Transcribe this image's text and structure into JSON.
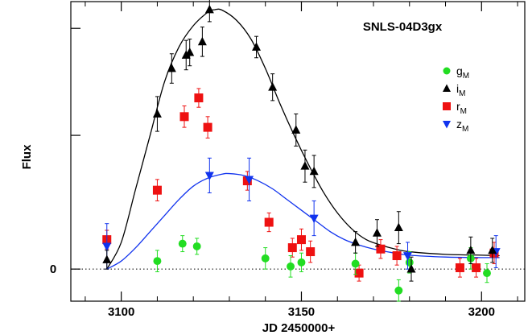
{
  "chart_data": {
    "type": "scatter",
    "title": "SNLS-04D3gx",
    "xlabel": "JD 2450000+",
    "ylabel": "Flux",
    "xlim": [
      3086,
      3212
    ],
    "ylim": [
      -0.12,
      1.0
    ],
    "xticks": [
      3100,
      3150,
      3200
    ],
    "yticks": [
      0
    ],
    "yticks_unlabeled": [
      0.5,
      0.9
    ],
    "zero_line": "dotted",
    "grid": false,
    "legend_position": "top-right",
    "series": [
      {
        "name": "g",
        "subscript": "M",
        "marker": "circle",
        "color": "#22dd22",
        "points": [
          {
            "x": 3110.0,
            "y": 0.03,
            "err": 0.04
          },
          {
            "x": 3117.0,
            "y": 0.095,
            "err": 0.03
          },
          {
            "x": 3121.0,
            "y": 0.085,
            "err": 0.03
          },
          {
            "x": 3140.0,
            "y": 0.04,
            "err": 0.04
          },
          {
            "x": 3147.0,
            "y": 0.01,
            "err": 0.04
          },
          {
            "x": 3150.0,
            "y": 0.025,
            "err": 0.035
          },
          {
            "x": 3165.0,
            "y": 0.02,
            "err": 0.04
          },
          {
            "x": 3177.0,
            "y": -0.08,
            "err": 0.04
          },
          {
            "x": 3180.0,
            "y": 0.025,
            "err": 0.04
          },
          {
            "x": 3197.0,
            "y": 0.04,
            "err": 0.04
          },
          {
            "x": 3201.5,
            "y": -0.015,
            "err": 0.035
          }
        ]
      },
      {
        "name": "i",
        "subscript": "M",
        "marker": "triangle-up",
        "color": "#000000",
        "points": [
          {
            "x": 3096.0,
            "y": 0.035,
            "err": 0.035
          },
          {
            "x": 3110.0,
            "y": 0.58,
            "err": 0.065
          },
          {
            "x": 3114.0,
            "y": 0.75,
            "err": 0.055
          },
          {
            "x": 3118.0,
            "y": 0.8,
            "err": 0.055
          },
          {
            "x": 3119.0,
            "y": 0.81,
            "err": 0.05
          },
          {
            "x": 3122.5,
            "y": 0.85,
            "err": 0.055
          },
          {
            "x": 3124.5,
            "y": 0.97,
            "err": 0.045
          },
          {
            "x": 3137.5,
            "y": 0.83,
            "err": 0.04
          },
          {
            "x": 3142.0,
            "y": 0.68,
            "err": 0.05
          },
          {
            "x": 3148.5,
            "y": 0.52,
            "err": 0.06
          },
          {
            "x": 3151.0,
            "y": 0.385,
            "err": 0.06
          },
          {
            "x": 3153.5,
            "y": 0.365,
            "err": 0.06
          },
          {
            "x": 3165.0,
            "y": 0.1,
            "err": 0.04
          },
          {
            "x": 3171.0,
            "y": 0.135,
            "err": 0.05
          },
          {
            "x": 3177.0,
            "y": 0.155,
            "err": 0.06
          },
          {
            "x": 3180.5,
            "y": 0.0,
            "err": 0.045
          },
          {
            "x": 3197.0,
            "y": 0.07,
            "err": 0.05
          },
          {
            "x": 3203.0,
            "y": 0.07,
            "err": 0.045
          }
        ]
      },
      {
        "name": "r",
        "subscript": "M",
        "marker": "square",
        "color": "#ee1111",
        "points": [
          {
            "x": 3096.0,
            "y": 0.11,
            "err": 0.035
          },
          {
            "x": 3110.0,
            "y": 0.295,
            "err": 0.04
          },
          {
            "x": 3117.5,
            "y": 0.57,
            "err": 0.04
          },
          {
            "x": 3121.5,
            "y": 0.64,
            "err": 0.035
          },
          {
            "x": 3124.0,
            "y": 0.53,
            "err": 0.04
          },
          {
            "x": 3135.0,
            "y": 0.33,
            "err": 0.035
          },
          {
            "x": 3141.0,
            "y": 0.175,
            "err": 0.035
          },
          {
            "x": 3147.5,
            "y": 0.08,
            "err": 0.035
          },
          {
            "x": 3150.0,
            "y": 0.11,
            "err": 0.04
          },
          {
            "x": 3152.5,
            "y": 0.065,
            "err": 0.04
          },
          {
            "x": 3166.0,
            "y": -0.015,
            "err": 0.03
          },
          {
            "x": 3172.0,
            "y": 0.075,
            "err": 0.035
          },
          {
            "x": 3176.5,
            "y": 0.05,
            "err": 0.035
          },
          {
            "x": 3194.0,
            "y": 0.005,
            "err": 0.035
          },
          {
            "x": 3198.5,
            "y": 0.005,
            "err": 0.035
          },
          {
            "x": 3203.5,
            "y": 0.06,
            "err": 0.04
          }
        ]
      },
      {
        "name": "z",
        "subscript": "M",
        "marker": "triangle-down",
        "color": "#1133ee",
        "points": [
          {
            "x": 3096.0,
            "y": 0.085,
            "err": 0.085
          },
          {
            "x": 3124.5,
            "y": 0.35,
            "err": 0.065
          },
          {
            "x": 3135.5,
            "y": 0.335,
            "err": 0.08
          },
          {
            "x": 3153.5,
            "y": 0.19,
            "err": 0.065
          },
          {
            "x": 3179.5,
            "y": 0.05,
            "err": 0.05
          },
          {
            "x": 3204.0,
            "y": 0.065,
            "err": 0.06
          }
        ]
      }
    ],
    "fit_curves": [
      {
        "band": "i",
        "color": "#000000",
        "points": [
          [
            3096,
            0.0
          ],
          [
            3100,
            0.1
          ],
          [
            3104,
            0.3
          ],
          [
            3108,
            0.5
          ],
          [
            3112,
            0.7
          ],
          [
            3116,
            0.83
          ],
          [
            3120,
            0.91
          ],
          [
            3124,
            0.96
          ],
          [
            3126,
            0.97
          ],
          [
            3128,
            0.968
          ],
          [
            3132,
            0.93
          ],
          [
            3136,
            0.86
          ],
          [
            3140,
            0.75
          ],
          [
            3144,
            0.62
          ],
          [
            3148,
            0.5
          ],
          [
            3152,
            0.39
          ],
          [
            3156,
            0.29
          ],
          [
            3160,
            0.21
          ],
          [
            3164,
            0.15
          ],
          [
            3168,
            0.11
          ],
          [
            3172,
            0.09
          ],
          [
            3176,
            0.075
          ],
          [
            3180,
            0.065
          ],
          [
            3190,
            0.055
          ],
          [
            3200,
            0.052
          ],
          [
            3205,
            0.05
          ]
        ]
      },
      {
        "band": "z",
        "color": "#1133ee",
        "points": [
          [
            3096,
            0.0
          ],
          [
            3100,
            0.03
          ],
          [
            3104,
            0.08
          ],
          [
            3108,
            0.14
          ],
          [
            3112,
            0.2
          ],
          [
            3116,
            0.26
          ],
          [
            3120,
            0.31
          ],
          [
            3124,
            0.34
          ],
          [
            3128,
            0.355
          ],
          [
            3130,
            0.357
          ],
          [
            3134,
            0.35
          ],
          [
            3138,
            0.33
          ],
          [
            3142,
            0.3
          ],
          [
            3146,
            0.26
          ],
          [
            3150,
            0.22
          ],
          [
            3154,
            0.18
          ],
          [
            3158,
            0.14
          ],
          [
            3162,
            0.11
          ],
          [
            3166,
            0.09
          ],
          [
            3170,
            0.075
          ],
          [
            3175,
            0.062
          ],
          [
            3180,
            0.052
          ],
          [
            3190,
            0.045
          ],
          [
            3200,
            0.043
          ],
          [
            3205,
            0.043
          ]
        ]
      }
    ]
  }
}
